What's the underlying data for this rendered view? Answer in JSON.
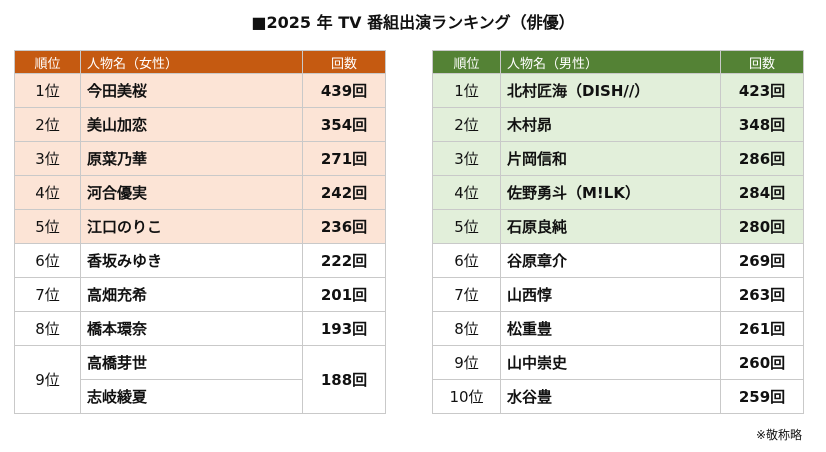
{
  "title": "■2025 年 TV 番組出演ランキング（俳優）",
  "tables": [
    {
      "header_color": "#c55a11",
      "highlight_color": "#fce4d6",
      "headers": [
        "順位",
        "人物名（女性）",
        "回数"
      ],
      "rows": [
        {
          "rank": "1位",
          "names": [
            "今田美桜"
          ],
          "count": "439回",
          "highlight": true
        },
        {
          "rank": "2位",
          "names": [
            "美山加恋"
          ],
          "count": "354回",
          "highlight": true
        },
        {
          "rank": "3位",
          "names": [
            "原菜乃華"
          ],
          "count": "271回",
          "highlight": true
        },
        {
          "rank": "4位",
          "names": [
            "河合優実"
          ],
          "count": "242回",
          "highlight": true
        },
        {
          "rank": "5位",
          "names": [
            "江口のりこ"
          ],
          "count": "236回",
          "highlight": true
        },
        {
          "rank": "6位",
          "names": [
            "香坂みゆき"
          ],
          "count": "222回",
          "highlight": false
        },
        {
          "rank": "7位",
          "names": [
            "高畑充希"
          ],
          "count": "201回",
          "highlight": false
        },
        {
          "rank": "8位",
          "names": [
            "橋本環奈"
          ],
          "count": "193回",
          "highlight": false
        },
        {
          "rank": "9位",
          "names": [
            "高橋芽世",
            "志岐綾夏"
          ],
          "count": "188回",
          "highlight": false
        }
      ]
    },
    {
      "header_color": "#548235",
      "highlight_color": "#e2efda",
      "headers": [
        "順位",
        "人物名（男性）",
        "回数"
      ],
      "rows": [
        {
          "rank": "1位",
          "names": [
            "北村匠海（DISH//）"
          ],
          "count": "423回",
          "highlight": true
        },
        {
          "rank": "2位",
          "names": [
            "木村昴"
          ],
          "count": "348回",
          "highlight": true
        },
        {
          "rank": "3位",
          "names": [
            "片岡信和"
          ],
          "count": "286回",
          "highlight": true
        },
        {
          "rank": "4位",
          "names": [
            "佐野勇斗（M!LK）"
          ],
          "count": "284回",
          "highlight": true
        },
        {
          "rank": "5位",
          "names": [
            "石原良純"
          ],
          "count": "280回",
          "highlight": true
        },
        {
          "rank": "6位",
          "names": [
            "谷原章介"
          ],
          "count": "269回",
          "highlight": false
        },
        {
          "rank": "7位",
          "names": [
            "山西惇"
          ],
          "count": "263回",
          "highlight": false
        },
        {
          "rank": "8位",
          "names": [
            "松重豊"
          ],
          "count": "261回",
          "highlight": false
        },
        {
          "rank": "9位",
          "names": [
            "山中崇史"
          ],
          "count": "260回",
          "highlight": false
        },
        {
          "rank": "10位",
          "names": [
            "水谷豊"
          ],
          "count": "259回",
          "highlight": false
        }
      ]
    }
  ],
  "note": "※敬称略"
}
